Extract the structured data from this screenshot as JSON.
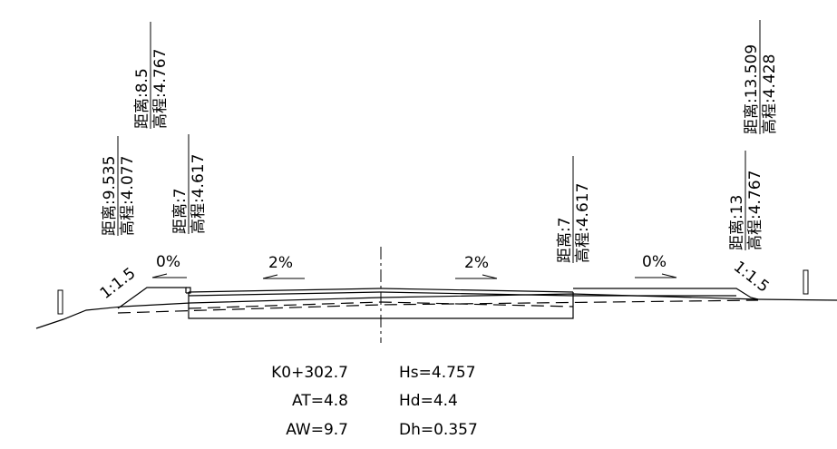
{
  "labels": {
    "l_outer": {
      "dist": "距离:9.535",
      "elev": "高程:4.077"
    },
    "l_top": {
      "dist": "距离:8.5",
      "elev": "高程:4.767"
    },
    "l_inner": {
      "dist": "距离:7",
      "elev": "高程:4.617"
    },
    "r_inner": {
      "dist": "距离:7",
      "elev": "高程:4.617"
    },
    "r_outer": {
      "dist": "距离:13",
      "elev": "高程:4.767"
    },
    "r_top": {
      "dist": "距离:13.509",
      "elev": "高程:4.428"
    }
  },
  "slopes": {
    "left_side": "1:1.5",
    "right_side": "1:1.5",
    "left_shoulder": "0%",
    "left_lane": "2%",
    "right_lane": "2%",
    "right_shoulder": "0%"
  },
  "info": {
    "station": "K0+302.7",
    "at": "AT=4.8",
    "aw": "AW=9.7",
    "hs": "Hs=4.757",
    "hd": "Hd=4.4",
    "dh": "Dh=0.357"
  }
}
